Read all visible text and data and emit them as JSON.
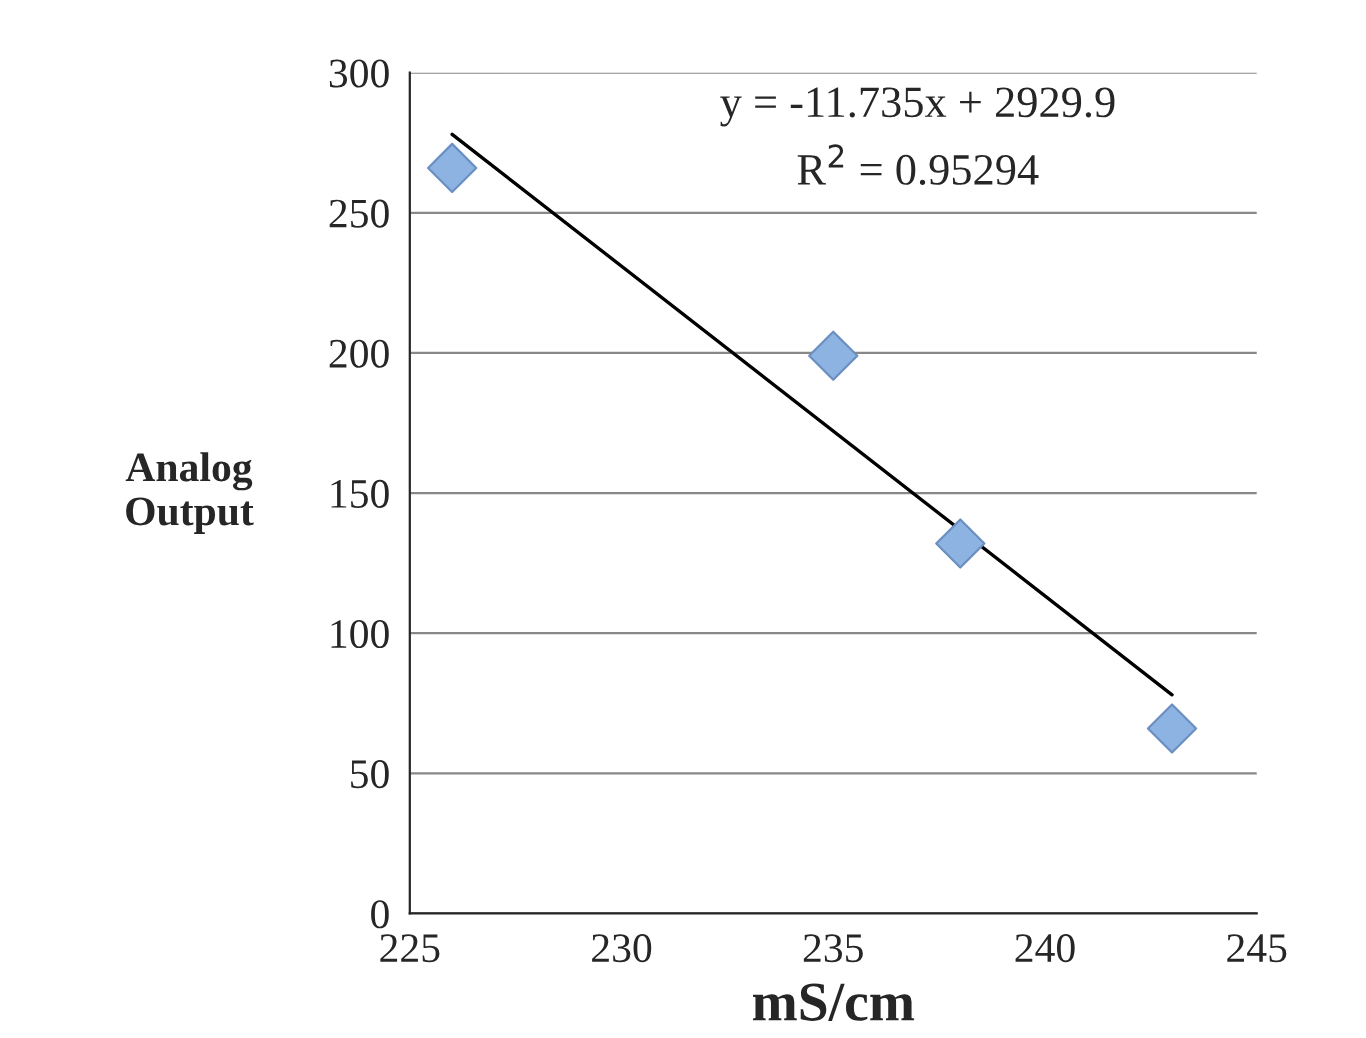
{
  "chart_data": {
    "type": "scatter",
    "xlabel": "mS/cm",
    "ylabel": "Analog\nOutput",
    "xlim": [
      225,
      245
    ],
    "xticks": [
      225,
      230,
      235,
      240,
      245
    ],
    "ylim": [
      0,
      300
    ],
    "yticks": [
      0,
      50,
      100,
      150,
      200,
      250,
      300
    ],
    "grid": "y",
    "legend": false,
    "series": [
      {
        "type": "scatter",
        "marker": "diamond",
        "color": "#8db3e2",
        "x": [
          226,
          235,
          238,
          243
        ],
        "values": [
          266,
          199,
          132,
          66
        ]
      },
      {
        "type": "line",
        "marker": "none",
        "line_style": "solid",
        "color": "#000000",
        "x": [
          226,
          243
        ],
        "values": [
          278,
          78
        ]
      }
    ],
    "annotations": [
      "y = -11.735x + 2929.9",
      "R$^{2}$ = 0.95294"
    ]
  }
}
